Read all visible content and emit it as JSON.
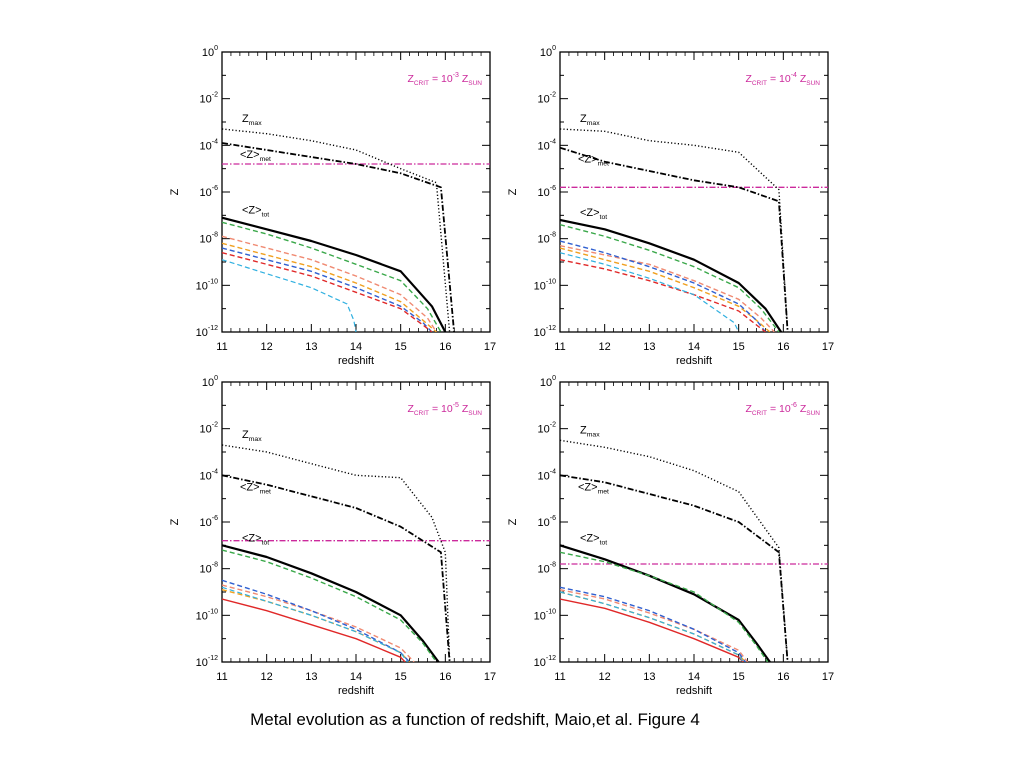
{
  "caption": "Metal evolution as a function of redshift, Maio,et al. Figure 4",
  "colors": {
    "zmax": "#000000",
    "zmet": "#000000",
    "ztot": "#000000",
    "zcrit": "#cc2a9c",
    "annotation": "#cc2a9c",
    "green": "#3aa84a",
    "salmon": "#f08a72",
    "orange": "#f0a020",
    "blue": "#3060d0",
    "red": "#e02828",
    "cyan": "#30b0e0"
  },
  "chart_data": [
    {
      "type": "line",
      "panel": "top-left",
      "xlabel": "redshift",
      "ylabel": "Z",
      "ylog": true,
      "xlim": [
        11,
        17
      ],
      "ylim_exp": [
        -12,
        0
      ],
      "xticks": [
        "11",
        "12",
        "13",
        "14",
        "15",
        "16",
        "17"
      ],
      "yticks_exp": [
        "0",
        "-2",
        "-4",
        "-6",
        "-8",
        "-10",
        "-12"
      ],
      "annotation": {
        "base": "Z",
        "sub": "CRIT",
        "eq": " = 10",
        "exp": "-3",
        "unit": "Z",
        "unit_sub": "SUN"
      },
      "labels": {
        "zmax": {
          "base": "Z",
          "sub": "max"
        },
        "zmet": {
          "base": "<Z>",
          "sub": "met"
        },
        "ztot": {
          "base": "<Z>",
          "sub": "tot"
        }
      },
      "zcrit_log": -4.8,
      "series": [
        {
          "key": "zmax",
          "color": "zmax",
          "dash": "dot",
          "width": 1.4,
          "x": [
            11,
            12,
            13,
            14,
            15,
            15.8,
            16.1
          ],
          "logy": [
            -3.3,
            -3.5,
            -3.8,
            -4.2,
            -5.0,
            -5.6,
            -12.1
          ]
        },
        {
          "key": "zmet",
          "color": "zmet",
          "dash": "dashdot",
          "width": 1.8,
          "x": [
            11,
            12,
            13,
            14,
            15,
            15.9,
            16.2
          ],
          "logy": [
            -3.9,
            -4.2,
            -4.5,
            -4.8,
            -5.2,
            -5.8,
            -12.1
          ]
        },
        {
          "key": "ztot",
          "color": "ztot",
          "dash": "solid",
          "width": 2.2,
          "x": [
            11,
            12,
            13,
            14,
            15,
            15.7,
            16.0
          ],
          "logy": [
            -7.1,
            -7.6,
            -8.1,
            -8.7,
            -9.4,
            -10.9,
            -12.0
          ]
        },
        {
          "color": "green",
          "dash": "dash",
          "width": 1.4,
          "x": [
            11,
            12,
            13,
            14,
            15,
            15.6,
            15.9
          ],
          "logy": [
            -7.3,
            -7.8,
            -8.4,
            -9.1,
            -9.8,
            -11.0,
            -12.0
          ]
        },
        {
          "color": "salmon",
          "dash": "dash",
          "width": 1.4,
          "x": [
            11,
            12,
            13,
            14,
            15,
            15.6,
            15.8
          ],
          "logy": [
            -7.9,
            -8.4,
            -8.9,
            -9.6,
            -10.4,
            -11.4,
            -12.0
          ]
        },
        {
          "color": "orange",
          "dash": "dash",
          "width": 1.4,
          "x": [
            11,
            12,
            13,
            14,
            15,
            15.5,
            15.8
          ],
          "logy": [
            -8.2,
            -8.7,
            -9.2,
            -9.9,
            -10.7,
            -11.5,
            -12.0
          ]
        },
        {
          "color": "blue",
          "dash": "dash",
          "width": 1.4,
          "x": [
            11,
            12,
            13,
            14,
            15,
            15.5,
            15.7
          ],
          "logy": [
            -8.4,
            -8.9,
            -9.4,
            -10.1,
            -10.9,
            -11.6,
            -12.0
          ]
        },
        {
          "color": "red",
          "dash": "dash",
          "width": 1.4,
          "x": [
            11,
            12,
            13,
            14,
            15,
            15.5,
            15.7
          ],
          "logy": [
            -8.6,
            -9.1,
            -9.6,
            -10.3,
            -11.0,
            -11.7,
            -12.0
          ]
        },
        {
          "color": "cyan",
          "dash": "dash",
          "width": 1.2,
          "x": [
            11,
            12,
            13,
            13.8,
            13.95,
            14.0
          ],
          "logy": [
            -8.9,
            -9.5,
            -10.1,
            -10.8,
            -11.5,
            -12.0
          ]
        }
      ]
    },
    {
      "type": "line",
      "panel": "top-right",
      "xlabel": "redshift",
      "ylabel": "Z",
      "ylog": true,
      "xlim": [
        11,
        17
      ],
      "ylim_exp": [
        -12,
        0
      ],
      "xticks": [
        "11",
        "12",
        "13",
        "14",
        "15",
        "16",
        "17"
      ],
      "yticks_exp": [
        "0",
        "-2",
        "-4",
        "-6",
        "-8",
        "-10",
        "-12"
      ],
      "annotation": {
        "base": "Z",
        "sub": "CRIT",
        "eq": " = 10",
        "exp": "-4",
        "unit": "Z",
        "unit_sub": "SUN"
      },
      "labels": {
        "zmax": {
          "base": "Z",
          "sub": "max"
        },
        "zmet": {
          "base": "<Z>",
          "sub": "met"
        },
        "ztot": {
          "base": "<Z>",
          "sub": "tot"
        }
      },
      "zcrit_log": -5.8,
      "series": [
        {
          "key": "zmax",
          "color": "zmax",
          "dash": "dot",
          "width": 1.4,
          "x": [
            11,
            12,
            13,
            14,
            15,
            15.9,
            16.1
          ],
          "logy": [
            -3.3,
            -3.4,
            -3.8,
            -4.0,
            -4.3,
            -5.9,
            -12.1
          ]
        },
        {
          "key": "zmet",
          "color": "zmet",
          "dash": "dashdot",
          "width": 1.8,
          "x": [
            11,
            12,
            13,
            14,
            15,
            15.9,
            16.1
          ],
          "logy": [
            -4.1,
            -4.7,
            -5.1,
            -5.5,
            -5.8,
            -6.4,
            -12.1
          ]
        },
        {
          "key": "ztot",
          "color": "ztot",
          "dash": "solid",
          "width": 2.2,
          "x": [
            11,
            12,
            13,
            14,
            15,
            15.6,
            15.95
          ],
          "logy": [
            -7.2,
            -7.6,
            -8.2,
            -8.9,
            -9.9,
            -11.0,
            -12.0
          ]
        },
        {
          "color": "green",
          "dash": "dash",
          "width": 1.4,
          "x": [
            11,
            12,
            13,
            14,
            15,
            15.5,
            15.9
          ],
          "logy": [
            -7.4,
            -7.9,
            -8.5,
            -9.2,
            -10.1,
            -11.0,
            -12.0
          ]
        },
        {
          "color": "salmon",
          "dash": "dash",
          "width": 1.4,
          "x": [
            11,
            12,
            13,
            14,
            15,
            15.5,
            15.8
          ],
          "logy": [
            -8.3,
            -8.7,
            -9.1,
            -9.8,
            -10.6,
            -11.4,
            -12.0
          ]
        },
        {
          "color": "orange",
          "dash": "dash",
          "width": 1.4,
          "x": [
            11,
            12,
            13,
            14,
            15,
            15.4,
            15.7
          ],
          "logy": [
            -8.4,
            -8.9,
            -9.4,
            -10.1,
            -10.9,
            -11.5,
            -12.0
          ]
        },
        {
          "color": "blue",
          "dash": "dash",
          "width": 1.4,
          "x": [
            11,
            12,
            13,
            14,
            15,
            15.4,
            15.6
          ],
          "logy": [
            -8.1,
            -8.6,
            -9.2,
            -9.9,
            -10.8,
            -11.5,
            -12.0
          ]
        },
        {
          "color": "red",
          "dash": "dash",
          "width": 1.4,
          "x": [
            11,
            12,
            13,
            14,
            15,
            15.4,
            15.6
          ],
          "logy": [
            -8.9,
            -9.3,
            -9.8,
            -10.4,
            -11.1,
            -11.7,
            -12.0
          ]
        },
        {
          "color": "cyan",
          "dash": "dash",
          "width": 1.2,
          "x": [
            11,
            12,
            13,
            14,
            14.9,
            15.0
          ],
          "logy": [
            -8.6,
            -9.1,
            -9.7,
            -10.4,
            -11.6,
            -12.0
          ]
        }
      ]
    },
    {
      "type": "line",
      "panel": "bottom-left",
      "xlabel": "redshift",
      "ylabel": "Z",
      "ylog": true,
      "xlim": [
        11,
        17
      ],
      "ylim_exp": [
        -12,
        0
      ],
      "xticks": [
        "11",
        "12",
        "13",
        "14",
        "15",
        "16",
        "17"
      ],
      "yticks_exp": [
        "0",
        "-2",
        "-4",
        "-6",
        "-8",
        "-10",
        "-12"
      ],
      "annotation": {
        "base": "Z",
        "sub": "CRIT",
        "eq": " = 10",
        "exp": "-5",
        "unit": "Z",
        "unit_sub": "SUN"
      },
      "labels": {
        "zmax": {
          "base": "Z",
          "sub": "max"
        },
        "zmet": {
          "base": "<Z>",
          "sub": "met"
        },
        "ztot": {
          "base": "<Z>",
          "sub": "tot"
        }
      },
      "zcrit_log": -6.8,
      "series": [
        {
          "key": "zmax",
          "color": "zmax",
          "dash": "dot",
          "width": 1.4,
          "x": [
            11,
            12,
            13,
            14,
            15,
            15.7,
            16.0,
            16.1
          ],
          "logy": [
            -2.7,
            -3.0,
            -3.5,
            -4.0,
            -4.1,
            -5.8,
            -7.3,
            -12.1
          ]
        },
        {
          "key": "zmet",
          "color": "zmet",
          "dash": "dashdot",
          "width": 1.8,
          "x": [
            11,
            12,
            13,
            14,
            15,
            15.9,
            16.1
          ],
          "logy": [
            -4.0,
            -4.4,
            -4.9,
            -5.4,
            -6.2,
            -7.3,
            -12.1
          ]
        },
        {
          "key": "ztot",
          "color": "ztot",
          "dash": "solid",
          "width": 2.2,
          "x": [
            11,
            12,
            13,
            14,
            15,
            15.5,
            15.85
          ],
          "logy": [
            -7.0,
            -7.5,
            -8.2,
            -9.0,
            -10.0,
            -11.1,
            -12.0
          ]
        },
        {
          "color": "green",
          "dash": "dash",
          "width": 1.4,
          "x": [
            11,
            12,
            13,
            14,
            15,
            15.5,
            15.8
          ],
          "logy": [
            -7.2,
            -7.7,
            -8.4,
            -9.2,
            -10.2,
            -11.2,
            -12.0
          ]
        },
        {
          "color": "salmon",
          "dash": "dash",
          "width": 1.4,
          "x": [
            11,
            12,
            13,
            14,
            15,
            15.3
          ],
          "logy": [
            -8.7,
            -9.2,
            -9.8,
            -10.5,
            -11.4,
            -12.0
          ]
        },
        {
          "color": "orange",
          "dash": "dash",
          "width": 1.4,
          "x": [
            11,
            12,
            13,
            14,
            15,
            15.2
          ],
          "logy": [
            -8.9,
            -9.4,
            -10.0,
            -10.7,
            -11.6,
            -12.0
          ]
        },
        {
          "color": "blue",
          "dash": "dash",
          "width": 1.4,
          "x": [
            11,
            12,
            13,
            14,
            15,
            15.2
          ],
          "logy": [
            -8.5,
            -9.1,
            -9.8,
            -10.6,
            -11.6,
            -12.0
          ]
        },
        {
          "color": "red",
          "dash": "solid",
          "width": 1.4,
          "x": [
            11,
            12,
            13,
            14,
            15,
            15.1
          ],
          "logy": [
            -9.3,
            -9.8,
            -10.4,
            -11.0,
            -11.8,
            -12.0
          ]
        },
        {
          "color": "cyan",
          "dash": "dash",
          "width": 1.2,
          "x": [
            11,
            12,
            13,
            14,
            15,
            15.15
          ],
          "logy": [
            -8.8,
            -9.4,
            -10.0,
            -10.7,
            -11.6,
            -12.0
          ]
        }
      ]
    },
    {
      "type": "line",
      "panel": "bottom-right",
      "xlabel": "redshift",
      "ylabel": "Z",
      "ylog": true,
      "xlim": [
        11,
        17
      ],
      "ylim_exp": [
        -12,
        0
      ],
      "xticks": [
        "11",
        "12",
        "13",
        "14",
        "15",
        "16",
        "17"
      ],
      "yticks_exp": [
        "0",
        "-2",
        "-4",
        "-6",
        "-8",
        "-10",
        "-12"
      ],
      "annotation": {
        "base": "Z",
        "sub": "CRIT",
        "eq": " = 10",
        "exp": "-6",
        "unit": "Z",
        "unit_sub": "SUN"
      },
      "labels": {
        "zmax": {
          "base": "Z",
          "sub": "max"
        },
        "zmet": {
          "base": "<Z>",
          "sub": "met"
        },
        "ztot": {
          "base": "<Z>",
          "sub": "tot"
        }
      },
      "zcrit_log": -7.8,
      "series": [
        {
          "key": "zmax",
          "color": "zmax",
          "dash": "dot",
          "width": 1.4,
          "x": [
            11,
            12,
            13,
            14,
            15,
            15.9,
            16.1
          ],
          "logy": [
            -2.5,
            -2.8,
            -3.2,
            -3.8,
            -4.7,
            -7.1,
            -12.1
          ]
        },
        {
          "key": "zmet",
          "color": "zmet",
          "dash": "dashdot",
          "width": 1.8,
          "x": [
            11,
            12,
            13,
            14,
            15,
            15.9,
            16.1
          ],
          "logy": [
            -4.0,
            -4.3,
            -4.8,
            -5.3,
            -6.0,
            -7.3,
            -12.1
          ]
        },
        {
          "key": "ztot",
          "color": "ztot",
          "dash": "solid",
          "width": 2.2,
          "x": [
            11,
            12,
            13,
            14,
            15,
            15.4,
            15.7
          ],
          "logy": [
            -7.0,
            -7.6,
            -8.3,
            -9.1,
            -10.2,
            -11.2,
            -12.0
          ]
        },
        {
          "color": "green",
          "dash": "dash",
          "width": 1.4,
          "x": [
            11,
            12,
            13,
            14,
            15,
            15.4,
            15.65
          ],
          "logy": [
            -7.3,
            -7.7,
            -8.3,
            -9.0,
            -10.3,
            -11.3,
            -12.0
          ]
        },
        {
          "color": "salmon",
          "dash": "dash",
          "width": 1.4,
          "x": [
            11,
            12,
            13,
            14,
            15,
            15.2
          ],
          "logy": [
            -8.9,
            -9.3,
            -9.9,
            -10.6,
            -11.5,
            -12.0
          ]
        },
        {
          "color": "orange",
          "dash": "dash",
          "width": 1.4,
          "x": [
            11,
            12,
            13,
            14,
            15,
            15.15
          ],
          "logy": [
            -9.0,
            -9.5,
            -10.1,
            -10.8,
            -11.7,
            -12.0
          ]
        },
        {
          "color": "blue",
          "dash": "dash",
          "width": 1.4,
          "x": [
            11,
            12,
            13,
            14,
            15,
            15.15
          ],
          "logy": [
            -8.8,
            -9.2,
            -9.8,
            -10.6,
            -11.6,
            -12.0
          ]
        },
        {
          "color": "red",
          "dash": "solid",
          "width": 1.4,
          "x": [
            11,
            12,
            13,
            14,
            15,
            15.1
          ],
          "logy": [
            -9.3,
            -9.7,
            -10.3,
            -11.0,
            -11.8,
            -12.0
          ]
        },
        {
          "color": "cyan",
          "dash": "dash",
          "width": 1.2,
          "x": [
            11,
            12,
            13,
            14,
            15,
            15.1
          ],
          "logy": [
            -9.0,
            -9.5,
            -10.1,
            -10.8,
            -11.7,
            -12.0
          ]
        }
      ]
    }
  ]
}
